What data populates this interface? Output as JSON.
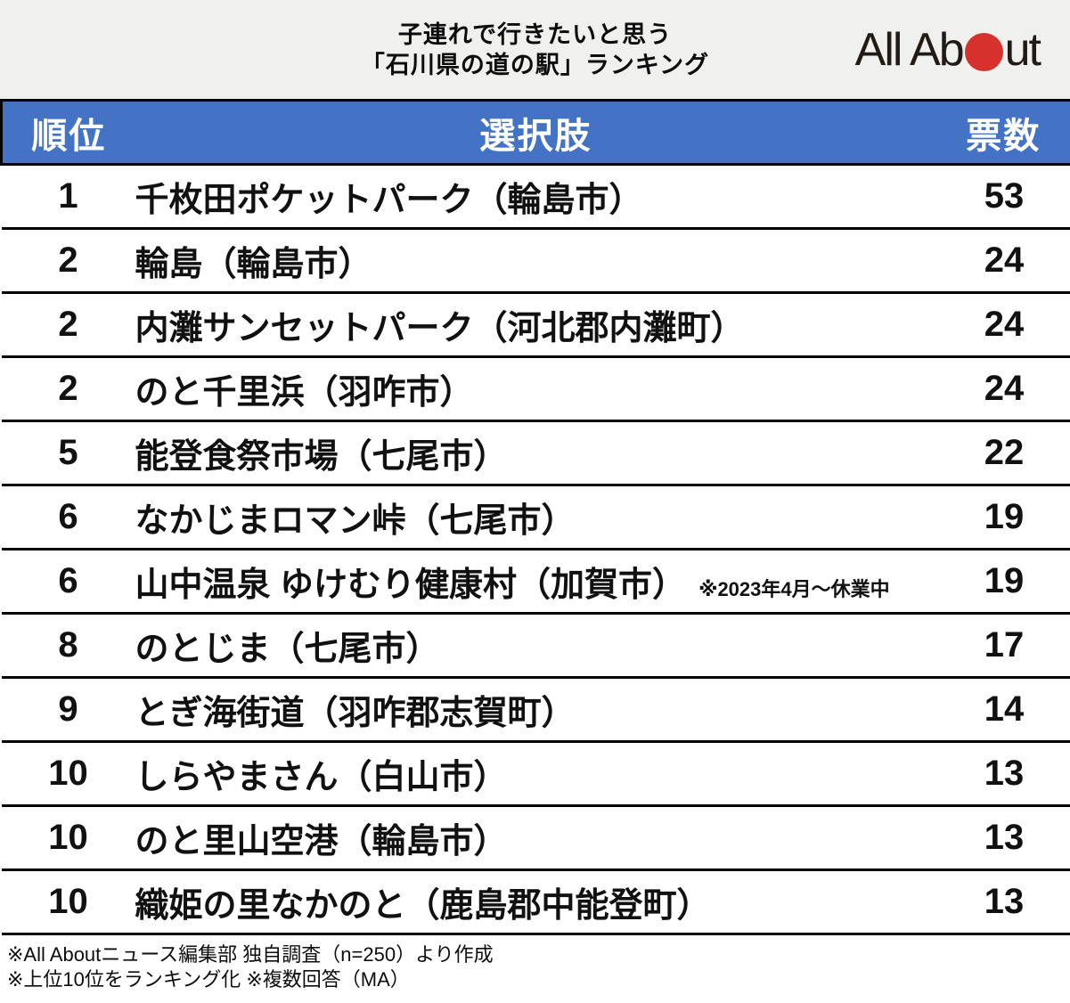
{
  "header": {
    "title_line1": "子連れで行きたいと思う",
    "title_line2": "「石川県の道の駅」ランキング",
    "logo_left": "All Ab",
    "logo_right": "ut"
  },
  "table": {
    "columns": {
      "rank": "順位",
      "choice": "選択肢",
      "votes": "票数"
    },
    "rows": [
      {
        "rank": "1",
        "name": "千枚田ポケットパーク（輪島市）",
        "votes": "53"
      },
      {
        "rank": "2",
        "name": "輪島（輪島市）",
        "votes": "24"
      },
      {
        "rank": "2",
        "name": "内灘サンセットパーク（河北郡内灘町）",
        "votes": "24"
      },
      {
        "rank": "2",
        "name": "のと千里浜（羽咋市）",
        "votes": "24"
      },
      {
        "rank": "5",
        "name": "能登食祭市場（七尾市）",
        "votes": "22"
      },
      {
        "rank": "6",
        "name": "なかじまロマン峠（七尾市）",
        "votes": "19"
      },
      {
        "rank": "6",
        "name": "山中温泉 ゆけむり健康村（加賀市）",
        "note": "※2023年4月〜休業中",
        "votes": "19"
      },
      {
        "rank": "8",
        "name": "のとじま（七尾市）",
        "votes": "17"
      },
      {
        "rank": "9",
        "name": "とぎ海街道（羽咋郡志賀町）",
        "votes": "14"
      },
      {
        "rank": "10",
        "name": "しらやまさん（白山市）",
        "votes": "13"
      },
      {
        "rank": "10",
        "name": "のと里山空港（輪島市）",
        "votes": "13"
      },
      {
        "rank": "10",
        "name": "織姫の里なかのと（鹿島郡中能登町）",
        "votes": "13"
      }
    ]
  },
  "footer": {
    "line1": "※All Aboutニュース編集部 独自調査（n=250）より作成",
    "line2": "※上位10位をランキング化 ※複数回答（MA）"
  },
  "colors": {
    "header_band": "#f0f0ee",
    "header_blue": "#4472c4",
    "logo_red": "#d7312e",
    "border_black": "#000000",
    "text": "#111111"
  }
}
